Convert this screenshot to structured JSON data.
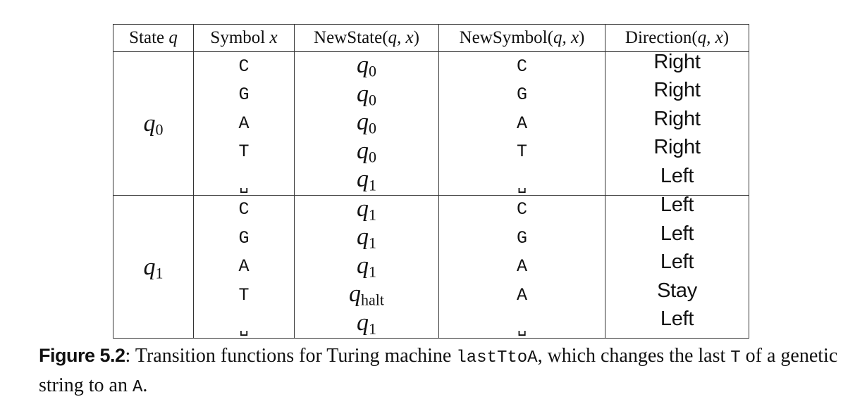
{
  "table": {
    "headers": [
      {
        "prefix": "State ",
        "var": "q"
      },
      {
        "prefix": "Symbol ",
        "var": "x"
      },
      {
        "prefix": "NewState(",
        "var": "q, x",
        "suffix": ")"
      },
      {
        "prefix": "NewSymbol(",
        "var": "q, x",
        "suffix": ")"
      },
      {
        "prefix": "Direction(",
        "var": "q, x",
        "suffix": ")"
      }
    ],
    "groups": [
      {
        "state": {
          "base": "q",
          "sub": "0"
        },
        "rows": [
          {
            "symbol": "C",
            "new_state": {
              "base": "q",
              "sub": "0"
            },
            "new_symbol": "C",
            "direction": "Right"
          },
          {
            "symbol": "G",
            "new_state": {
              "base": "q",
              "sub": "0"
            },
            "new_symbol": "G",
            "direction": "Right"
          },
          {
            "symbol": "A",
            "new_state": {
              "base": "q",
              "sub": "0"
            },
            "new_symbol": "A",
            "direction": "Right"
          },
          {
            "symbol": "T",
            "new_state": {
              "base": "q",
              "sub": "0"
            },
            "new_symbol": "T",
            "direction": "Right"
          },
          {
            "symbol": "␣",
            "new_state": {
              "base": "q",
              "sub": "1"
            },
            "new_symbol": "␣",
            "direction": "Left"
          }
        ]
      },
      {
        "state": {
          "base": "q",
          "sub": "1"
        },
        "rows": [
          {
            "symbol": "C",
            "new_state": {
              "base": "q",
              "sub": "1"
            },
            "new_symbol": "C",
            "direction": "Left"
          },
          {
            "symbol": "G",
            "new_state": {
              "base": "q",
              "sub": "1"
            },
            "new_symbol": "G",
            "direction": "Left"
          },
          {
            "symbol": "A",
            "new_state": {
              "base": "q",
              "sub": "1"
            },
            "new_symbol": "A",
            "direction": "Left"
          },
          {
            "symbol": "T",
            "new_state": {
              "base": "q",
              "sub": "halt"
            },
            "new_symbol": "A",
            "direction": "Stay"
          },
          {
            "symbol": "␣",
            "new_state": {
              "base": "q",
              "sub": "1"
            },
            "new_symbol": "␣",
            "direction": "Left"
          }
        ]
      }
    ]
  },
  "caption": {
    "label": "Figure 5.2",
    "text_1": ":  Transition functions for Turing machine ",
    "machine_name": "lastTtoA",
    "text_2": ", which changes the last ",
    "symbol_t": "T",
    "text_3": " of a genetic string to an ",
    "symbol_a": "A",
    "text_4": "."
  }
}
